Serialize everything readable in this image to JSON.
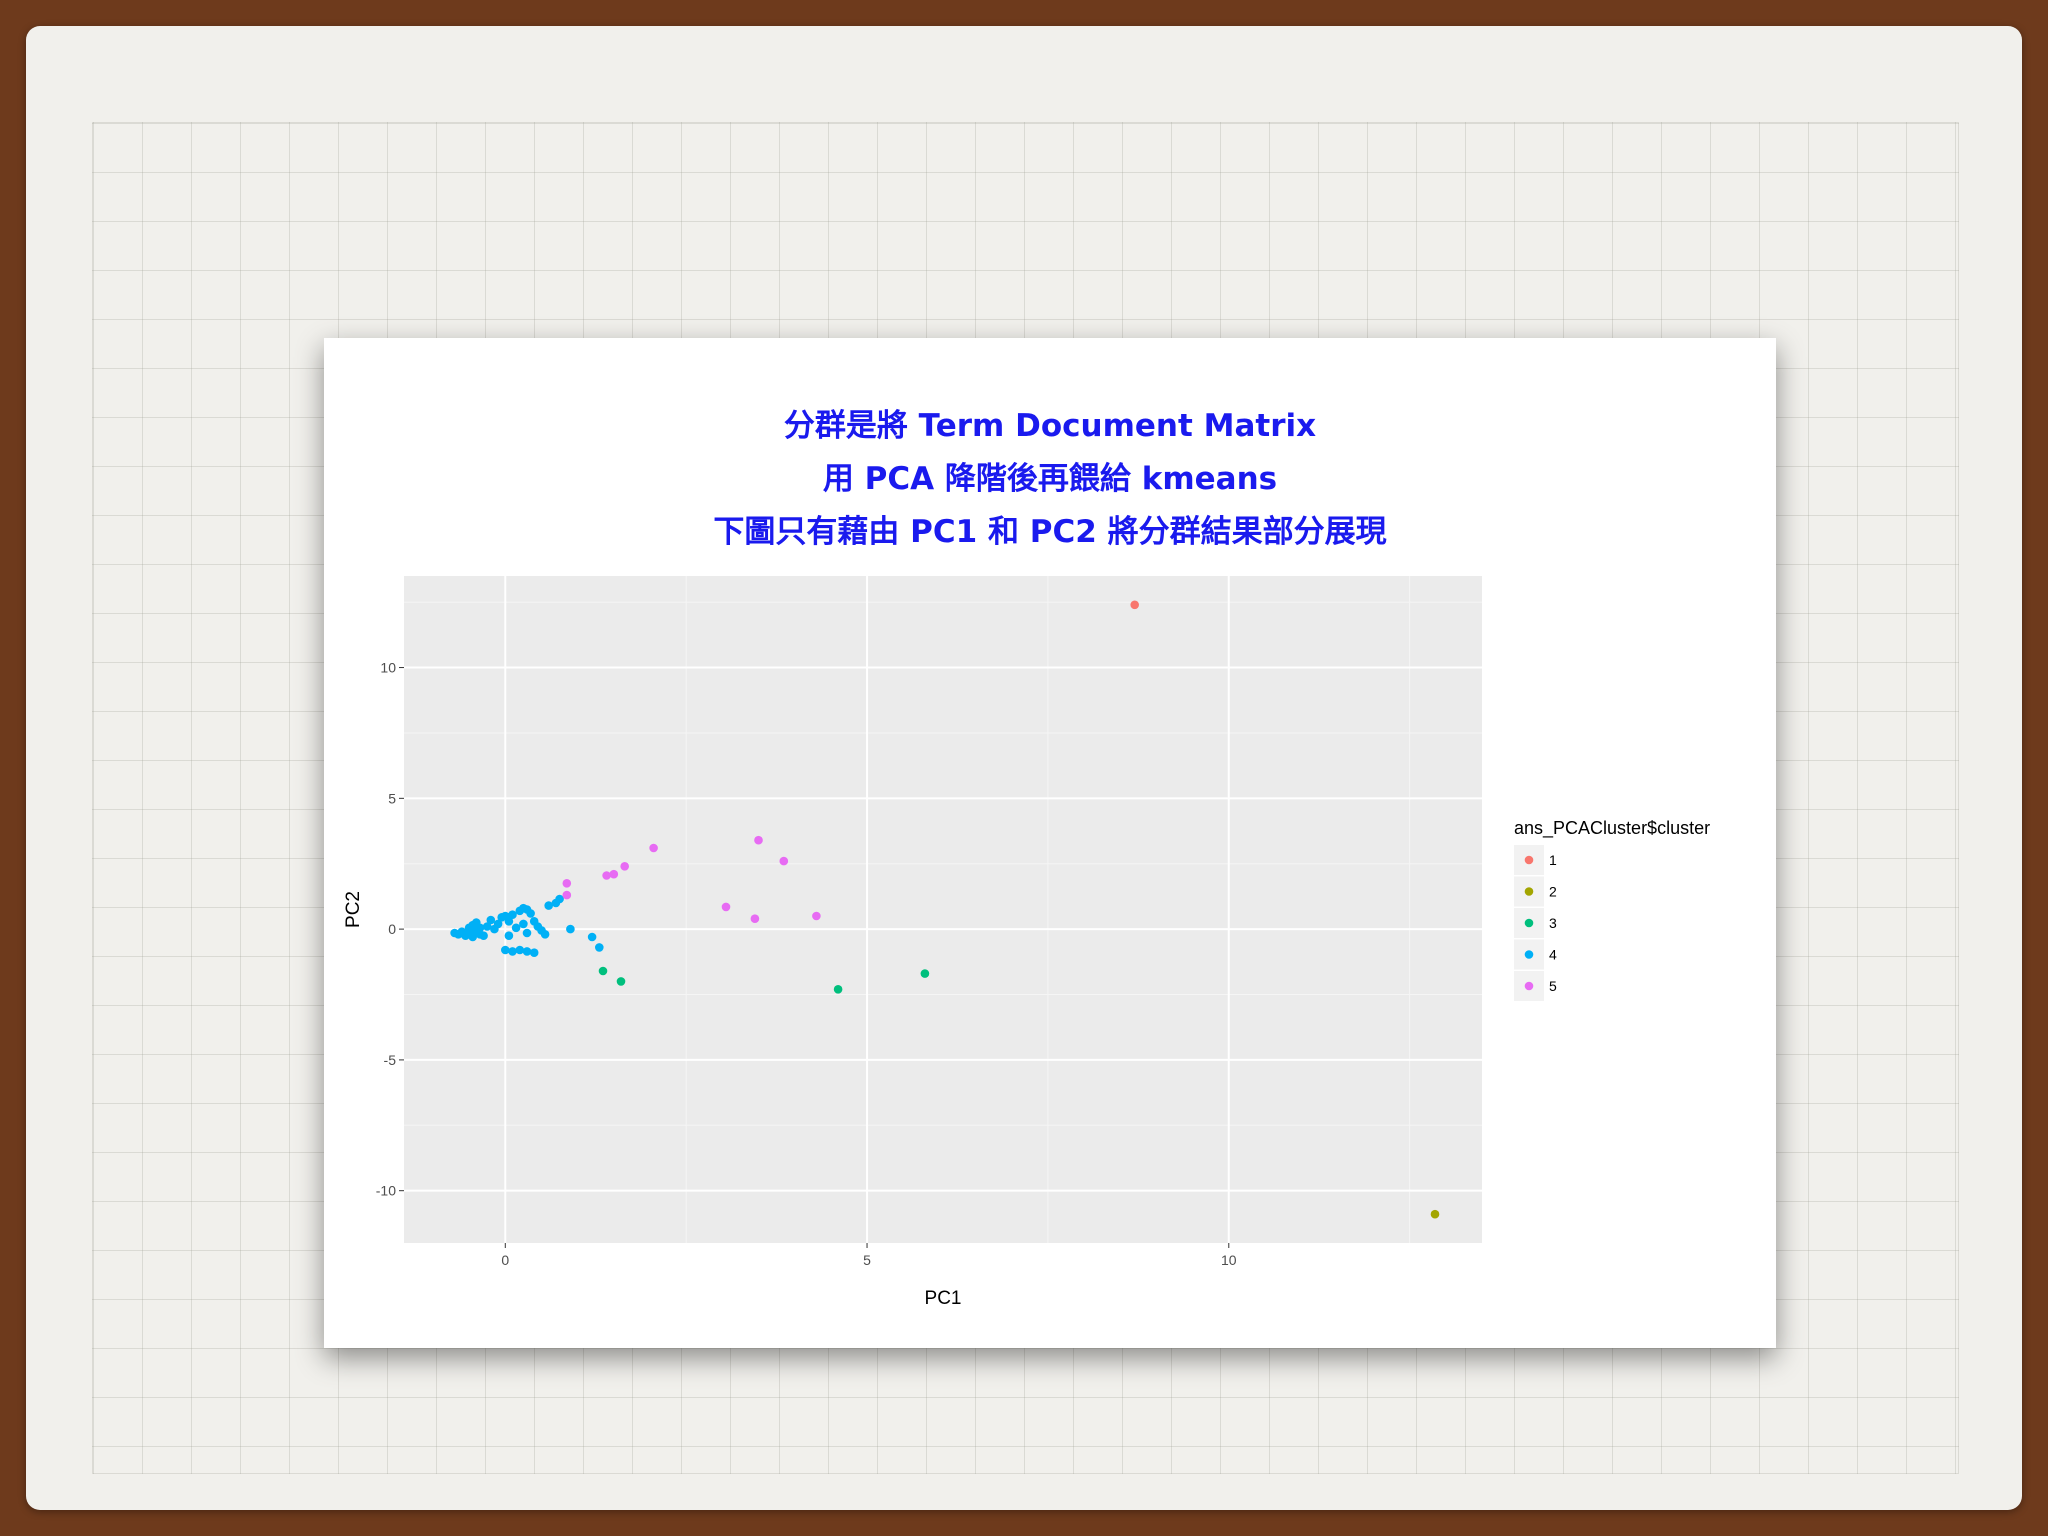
{
  "slide": {
    "title_lines": [
      "分群是將 Term Document Matrix",
      "用 PCA 降階後再餵給 kmeans",
      "下圖只有藉由 PC1 和 PC2 將分群結果部分展現"
    ],
    "title_color": "#1a1aee"
  },
  "chart_data": {
    "type": "scatter",
    "title": "",
    "xlabel": "PC1",
    "ylabel": "PC2",
    "xlim": [
      -1.4,
      13.5
    ],
    "ylim": [
      -12,
      13.5
    ],
    "x_ticks": [
      0,
      5,
      10
    ],
    "y_ticks": [
      -10,
      -5,
      0,
      5,
      10
    ],
    "x_tick_labels": [
      "0",
      "5",
      "10"
    ],
    "y_tick_labels": [
      "-10",
      "-5",
      "0",
      "5",
      "10"
    ],
    "grid": true,
    "legend": {
      "title": "ans_PCACluster$cluster",
      "position": "right"
    },
    "series": [
      {
        "name": "1",
        "color": "#F8766D",
        "points": [
          [
            8.7,
            12.4
          ]
        ]
      },
      {
        "name": "2",
        "color": "#A3A500",
        "points": [
          [
            12.85,
            -10.9
          ]
        ]
      },
      {
        "name": "3",
        "color": "#00BF7D",
        "points": [
          [
            1.35,
            -1.6
          ],
          [
            1.6,
            -2.0
          ],
          [
            4.6,
            -2.3
          ],
          [
            5.8,
            -1.7
          ]
        ]
      },
      {
        "name": "4",
        "color": "#00B0F6",
        "points": [
          [
            -0.7,
            -0.15
          ],
          [
            -0.65,
            -0.2
          ],
          [
            -0.6,
            -0.1
          ],
          [
            -0.55,
            -0.25
          ],
          [
            -0.5,
            -0.15
          ],
          [
            -0.45,
            -0.3
          ],
          [
            -0.4,
            -0.05
          ],
          [
            -0.35,
            -0.2
          ],
          [
            -0.5,
            0.05
          ],
          [
            -0.45,
            0.15
          ],
          [
            -0.4,
            0.25
          ],
          [
            -0.35,
            0.05
          ],
          [
            -0.3,
            -0.25
          ],
          [
            -0.25,
            0.1
          ],
          [
            -0.2,
            0.35
          ],
          [
            -0.15,
            0.0
          ],
          [
            -0.1,
            0.2
          ],
          [
            -0.05,
            0.45
          ],
          [
            0.0,
            0.5
          ],
          [
            0.05,
            0.3
          ],
          [
            0.1,
            0.55
          ],
          [
            0.15,
            0.05
          ],
          [
            0.2,
            0.7
          ],
          [
            0.25,
            0.8
          ],
          [
            0.3,
            0.75
          ],
          [
            0.35,
            0.6
          ],
          [
            0.4,
            0.3
          ],
          [
            0.45,
            0.1
          ],
          [
            0.5,
            -0.05
          ],
          [
            0.3,
            -0.15
          ],
          [
            0.05,
            -0.25
          ],
          [
            0.0,
            -0.8
          ],
          [
            0.1,
            -0.85
          ],
          [
            0.2,
            -0.8
          ],
          [
            0.3,
            -0.85
          ],
          [
            0.4,
            -0.9
          ],
          [
            0.55,
            -0.2
          ],
          [
            0.6,
            0.9
          ],
          [
            0.7,
            1.0
          ],
          [
            0.75,
            1.15
          ],
          [
            0.9,
            0.0
          ],
          [
            1.2,
            -0.3
          ],
          [
            1.3,
            -0.7
          ],
          [
            0.25,
            0.2
          ]
        ]
      },
      {
        "name": "5",
        "color": "#E76BF3",
        "points": [
          [
            0.85,
            1.75
          ],
          [
            0.85,
            1.3
          ],
          [
            1.4,
            2.05
          ],
          [
            1.5,
            2.1
          ],
          [
            1.65,
            2.4
          ],
          [
            2.05,
            3.1
          ],
          [
            3.05,
            0.85
          ],
          [
            3.45,
            0.4
          ],
          [
            3.5,
            3.4
          ],
          [
            3.85,
            2.6
          ],
          [
            4.3,
            0.5
          ]
        ]
      }
    ]
  }
}
